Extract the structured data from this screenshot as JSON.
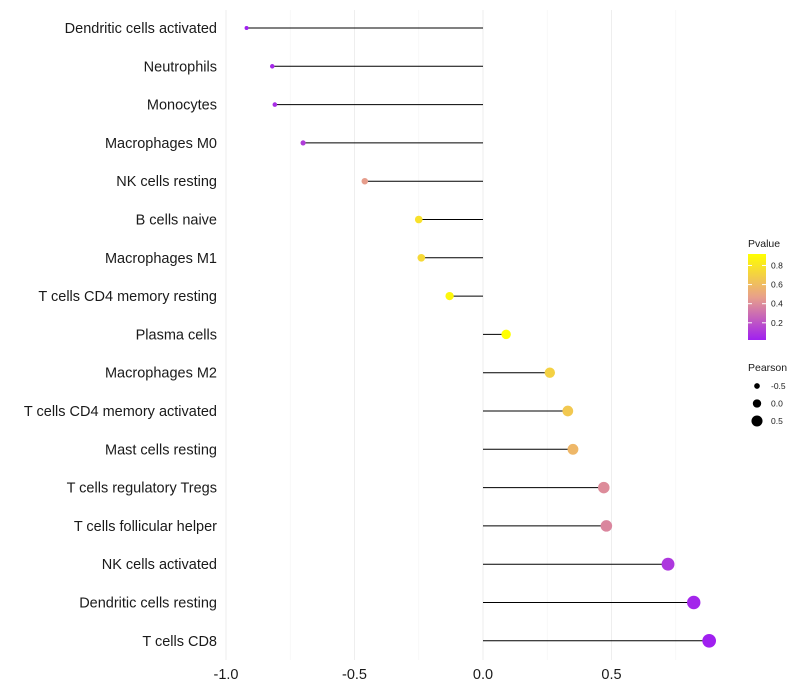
{
  "chart_data": {
    "type": "lollipop",
    "title": "",
    "xlabel": "",
    "ylabel": "",
    "xlim": [
      -1.0,
      0.88
    ],
    "xticks": [
      -1.0,
      -0.5,
      0.0,
      0.5
    ],
    "xtick_labels": [
      "-1.0",
      "-0.5",
      "0.0",
      "0.5"
    ],
    "grid": true,
    "categories": [
      "Dendritic cells activated",
      "Neutrophils",
      "Monocytes",
      "Macrophages M0",
      "NK cells resting",
      "B cells naive",
      "Macrophages M1",
      "T cells CD4 memory resting",
      "Plasma cells",
      "Macrophages M2",
      "T cells CD4 memory activated",
      "Mast cells resting",
      "T cells regulatory  Tregs ",
      "T cells follicular helper",
      "NK cells activated",
      "Dendritic cells resting",
      "T cells CD8"
    ],
    "values": [
      -0.92,
      -0.82,
      -0.81,
      -0.7,
      -0.46,
      -0.25,
      -0.24,
      -0.13,
      0.09,
      0.26,
      0.33,
      0.35,
      0.47,
      0.48,
      0.72,
      0.82,
      0.88
    ],
    "pvalues": [
      0.02,
      0.05,
      0.07,
      0.12,
      0.46,
      0.78,
      0.74,
      0.88,
      0.92,
      0.7,
      0.66,
      0.58,
      0.4,
      0.38,
      0.1,
      0.04,
      0.02
    ],
    "legend": {
      "color_title": "Pvalue",
      "color_ticks": [
        0.8,
        0.6,
        0.4,
        0.2
      ],
      "color_tick_labels": [
        "0.8",
        "0.6",
        "0.4",
        "0.2"
      ],
      "color_range": [
        0.02,
        0.92
      ],
      "color_low": "#a020f0",
      "color_mid": "#e8a08a",
      "color_high": "#ffff00",
      "size_title": "Pearson",
      "size_values": [
        -0.5,
        0.0,
        0.5
      ],
      "size_labels": [
        "-0.5",
        "0.0",
        "0.5"
      ],
      "placement": "right"
    }
  }
}
